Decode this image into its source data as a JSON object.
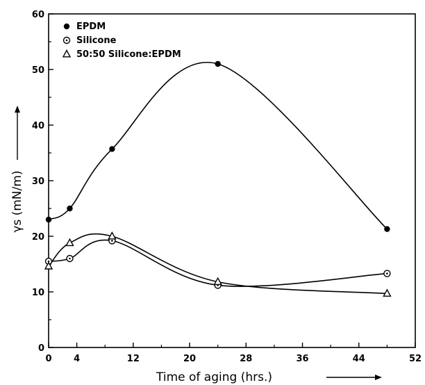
{
  "chart_data": {
    "type": "line",
    "xlabel": "Time of aging (hrs.)",
    "ylabel": "γs (mN/m)",
    "xlim": [
      0,
      52
    ],
    "ylim": [
      0,
      60
    ],
    "x_ticks": [
      0,
      4,
      12,
      20,
      28,
      36,
      44,
      52
    ],
    "y_ticks": [
      0,
      10,
      20,
      30,
      40,
      50,
      60
    ],
    "grid": false,
    "legend_position": "top-left",
    "series": [
      {
        "name": "EPDM",
        "marker": "filled-circle",
        "x": [
          0,
          3,
          9,
          24,
          48
        ],
        "y": [
          23,
          25,
          35.7,
          51,
          21.3
        ]
      },
      {
        "name": "Silicone",
        "marker": "dotted-circle",
        "x": [
          0,
          3,
          9,
          24,
          48
        ],
        "y": [
          15.5,
          16,
          19.2,
          11.2,
          13.3
        ]
      },
      {
        "name": "50:50 Silicone:EPDM",
        "marker": "triangle",
        "x": [
          0,
          3,
          9,
          24,
          48
        ],
        "y": [
          14.6,
          18.8,
          20,
          11.8,
          9.7
        ]
      }
    ]
  }
}
